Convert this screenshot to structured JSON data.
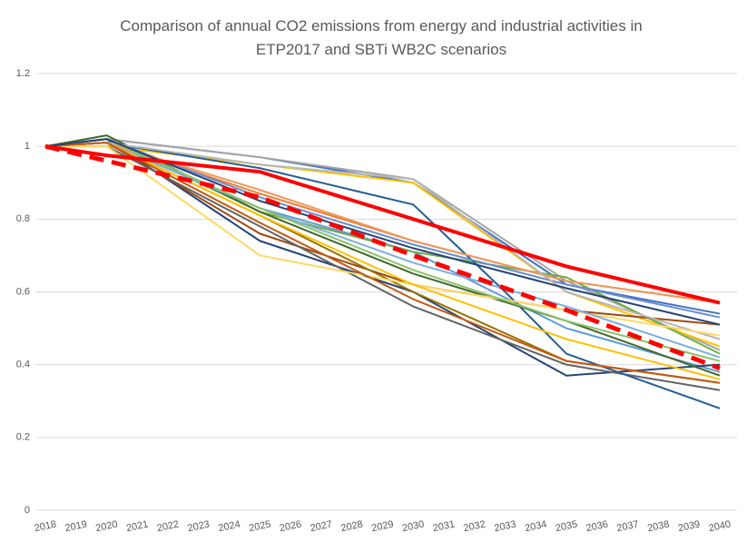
{
  "chart_data": {
    "type": "line",
    "title": "Comparison of annual CO2 emissions from energy and industrial activities in ETP2017 and SBTi WB2C scenarios",
    "x": [
      2018,
      2019,
      2020,
      2021,
      2022,
      2023,
      2024,
      2025,
      2026,
      2027,
      2028,
      2029,
      2030,
      2031,
      2032,
      2033,
      2034,
      2035,
      2036,
      2037,
      2038,
      2039,
      2040
    ],
    "xlim": [
      2018,
      2040
    ],
    "ylim": [
      0,
      1.2
    ],
    "yticks": [
      0,
      0.2,
      0.4,
      0.6,
      0.8,
      1,
      1.2
    ],
    "grid": true,
    "series": [
      {
        "color": "#4472c4",
        "x": [
          2018,
          2020,
          2025,
          2030,
          2035,
          2040
        ],
        "values": [
          1,
          1.02,
          0.97,
          0.9,
          0.62,
          0.54
        ]
      },
      {
        "color": "#ed7d31",
        "x": [
          2018,
          2020,
          2025,
          2030,
          2035,
          2040
        ],
        "values": [
          1,
          1.01,
          0.87,
          0.74,
          0.63,
          0.57
        ]
      },
      {
        "color": "#a5a5a5",
        "x": [
          2018,
          2020,
          2025,
          2030,
          2035,
          2040
        ],
        "values": [
          1,
          1.02,
          0.97,
          0.91,
          0.63,
          0.44
        ]
      },
      {
        "color": "#ffc000",
        "x": [
          2018,
          2020,
          2025,
          2030,
          2035,
          2040
        ],
        "values": [
          1,
          1.0,
          0.95,
          0.9,
          0.6,
          0.45
        ]
      },
      {
        "color": "#5b9bd5",
        "x": [
          2018,
          2020,
          2025,
          2030,
          2035,
          2040
        ],
        "values": [
          1,
          1.01,
          0.83,
          0.71,
          0.5,
          0.38
        ]
      },
      {
        "color": "#70ad47",
        "x": [
          2018,
          2020,
          2025,
          2030,
          2035,
          2040
        ],
        "values": [
          1,
          1.02,
          0.82,
          0.71,
          0.64,
          0.43
        ]
      },
      {
        "color": "#264478",
        "x": [
          2018,
          2020,
          2025,
          2030,
          2035,
          2040
        ],
        "values": [
          1,
          1.02,
          0.74,
          0.6,
          0.37,
          0.4
        ]
      },
      {
        "color": "#9e480e",
        "x": [
          2018,
          2020,
          2025,
          2030,
          2035,
          2040
        ],
        "values": [
          1,
          1.01,
          0.76,
          0.62,
          0.55,
          0.51
        ]
      },
      {
        "color": "#636363",
        "x": [
          2018,
          2020,
          2025,
          2030,
          2035,
          2040
        ],
        "values": [
          1,
          1.0,
          0.78,
          0.56,
          0.4,
          0.33
        ]
      },
      {
        "color": "#997300",
        "x": [
          2018,
          2020,
          2025,
          2030,
          2035,
          2040
        ],
        "values": [
          1,
          1.01,
          0.81,
          0.6,
          0.41,
          0.35
        ]
      },
      {
        "color": "#255e91",
        "x": [
          2018,
          2020,
          2025,
          2030,
          2033,
          2035,
          2040
        ],
        "values": [
          1,
          1.01,
          0.94,
          0.84,
          0.6,
          0.43,
          0.28
        ]
      },
      {
        "color": "#43682b",
        "x": [
          2018,
          2020,
          2025,
          2030,
          2035,
          2040
        ],
        "values": [
          1,
          1.03,
          0.82,
          0.65,
          0.52,
          0.37
        ]
      },
      {
        "color": "#698ed0",
        "x": [
          2018,
          2020,
          2025,
          2030,
          2035,
          2040
        ],
        "values": [
          1,
          1.02,
          0.86,
          0.73,
          0.62,
          0.53
        ]
      },
      {
        "color": "#f1975a",
        "x": [
          2018,
          2020,
          2025,
          2030,
          2035,
          2040
        ],
        "values": [
          1,
          1.01,
          0.88,
          0.74,
          0.63,
          0.57
        ]
      },
      {
        "color": "#b7b7b7",
        "x": [
          2018,
          2020,
          2025,
          2030,
          2035,
          2040
        ],
        "values": [
          1,
          1.01,
          0.95,
          0.91,
          0.6,
          0.47
        ]
      },
      {
        "color": "#ffd966",
        "x": [
          2018,
          2020,
          2025,
          2030,
          2035,
          2040
        ],
        "values": [
          1,
          1.0,
          0.7,
          0.62,
          0.55,
          0.48
        ]
      },
      {
        "color": "#7cafdd",
        "x": [
          2018,
          2020,
          2025,
          2030,
          2035,
          2040
        ],
        "values": [
          1,
          1.01,
          0.83,
          0.68,
          0.56,
          0.42
        ]
      },
      {
        "color": "#8cc168",
        "x": [
          2018,
          2020,
          2025,
          2030,
          2035,
          2040
        ],
        "values": [
          1,
          1.02,
          0.83,
          0.66,
          0.52,
          0.41
        ]
      },
      {
        "color": "#ffc000",
        "x": [
          2018,
          2020,
          2025,
          2030,
          2035,
          2040
        ],
        "values": [
          1,
          1.01,
          0.81,
          0.62,
          0.47,
          0.36
        ]
      },
      {
        "color": "#c55a11",
        "x": [
          2018,
          2020,
          2025,
          2030,
          2035,
          2040
        ],
        "values": [
          1,
          1.01,
          0.79,
          0.58,
          0.41,
          0.35
        ]
      },
      {
        "color": "#264478",
        "x": [
          2018,
          2020,
          2025,
          2030,
          2035,
          2040
        ],
        "values": [
          1,
          1.02,
          0.85,
          0.72,
          0.61,
          0.51
        ]
      },
      {
        "color": "#ff0000",
        "linewidth": 4,
        "x": [
          2018,
          2020,
          2025,
          2030,
          2035,
          2040
        ],
        "values": [
          1,
          0.975,
          0.93,
          0.8,
          0.67,
          0.57
        ]
      },
      {
        "color": "#ff0000",
        "linewidth": 5,
        "linestyle": "dashed",
        "x": [
          2018,
          2020,
          2025,
          2030,
          2035,
          2040
        ],
        "values": [
          1,
          0.96,
          0.86,
          0.7,
          0.55,
          0.39
        ]
      }
    ]
  }
}
